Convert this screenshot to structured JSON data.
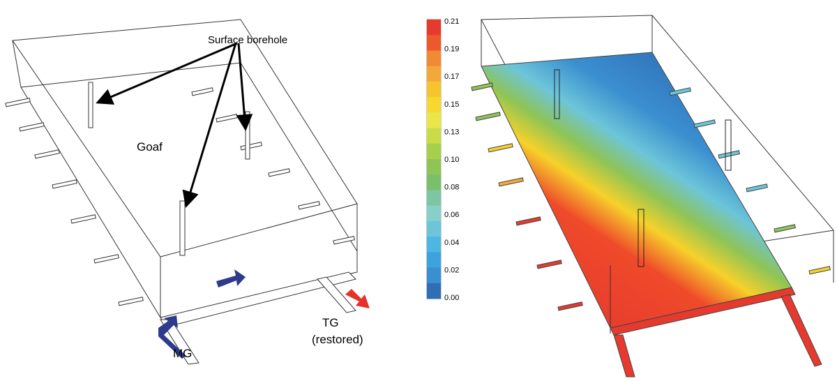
{
  "labels": {
    "borehole": "Surface borehole",
    "goaf": "Goaf",
    "mg": "MG",
    "tg": "TG",
    "restored": "(restored)"
  },
  "colorbar": {
    "ticks": [
      "0.21",
      "0.19",
      "0.17",
      "0.15",
      "0.13",
      "0.10",
      "0.08",
      "0.06",
      "0.04",
      "0.02",
      "0.00"
    ]
  }
}
